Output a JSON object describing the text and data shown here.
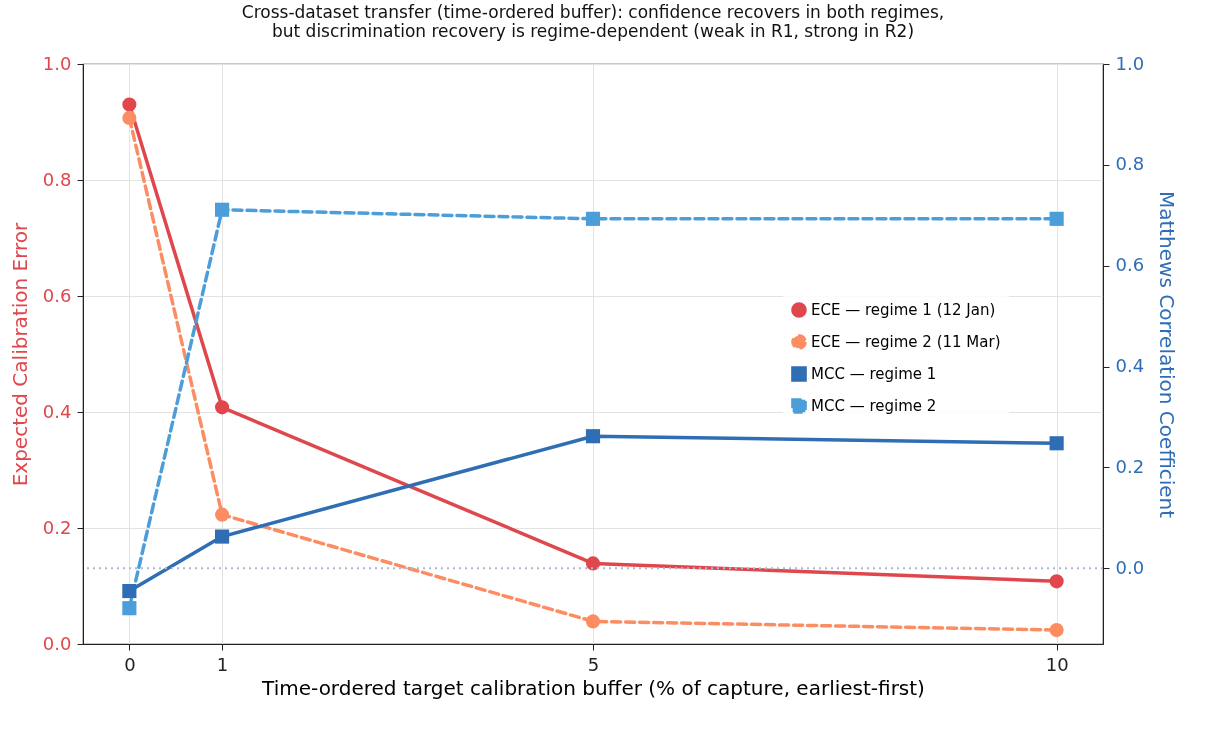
{
  "chart_data": {
    "type": "line",
    "title": "Cross-dataset transfer (time-ordered buffer): confidence recovers in both regimes,\nbut discrimination recovery is regime-dependent (weak in R1, strong in R2)",
    "xlabel": "Time-ordered target calibration buffer (% of capture, earliest-first)",
    "ylabel": "Expected Calibration Error",
    "y2label": "Matthews Correlation Coefficient",
    "x": [
      0,
      1,
      5,
      10
    ],
    "xlim": [
      -0.5,
      10.5
    ],
    "xticks": [
      0,
      1,
      5,
      10
    ],
    "ylim": [
      0,
      1
    ],
    "yticks": [
      {
        "value": 0,
        "label": "0.0"
      },
      0.2,
      0.4,
      0.6,
      0.8,
      {
        "value": 1,
        "label": "1.0"
      }
    ],
    "y2lim": [
      -0.15,
      1
    ],
    "y2ticks": [
      {
        "value": 0,
        "label": "0.0"
      },
      0.2,
      0.4,
      0.6,
      0.8,
      {
        "value": 1,
        "label": "1.0"
      }
    ],
    "series": [
      {
        "name": "ECE — regime 1 (12 Jan)",
        "color": "#e0474c",
        "values": [
          0.93,
          0.408,
          0.139,
          0.108
        ],
        "marker": "circle",
        "line_style": "solid"
      },
      {
        "name": "ECE — regime 2 (11 Mar)",
        "color": "#fc8d62",
        "values": [
          0.907,
          0.223,
          0.039,
          0.024
        ],
        "marker": "circle",
        "line_style": "dashed"
      },
      {
        "name": "MCC — regime 1",
        "color": "#2f6eb5",
        "values": [
          -0.045,
          0.063,
          0.262,
          0.248
        ],
        "marker": "square",
        "line_style": "solid",
        "axis": "y2"
      },
      {
        "name": "MCC — regime 2",
        "color": "#4c9ed9",
        "values": [
          -0.079,
          0.711,
          0.693,
          0.693
        ],
        "marker": "square",
        "line_style": "dashed",
        "axis": "y2"
      }
    ],
    "ref_lines": [
      {
        "axis": "y2",
        "value": 0,
        "color": "#a9b8d8",
        "line_style": "dotted"
      }
    ],
    "grid": true,
    "legend": "right"
  }
}
